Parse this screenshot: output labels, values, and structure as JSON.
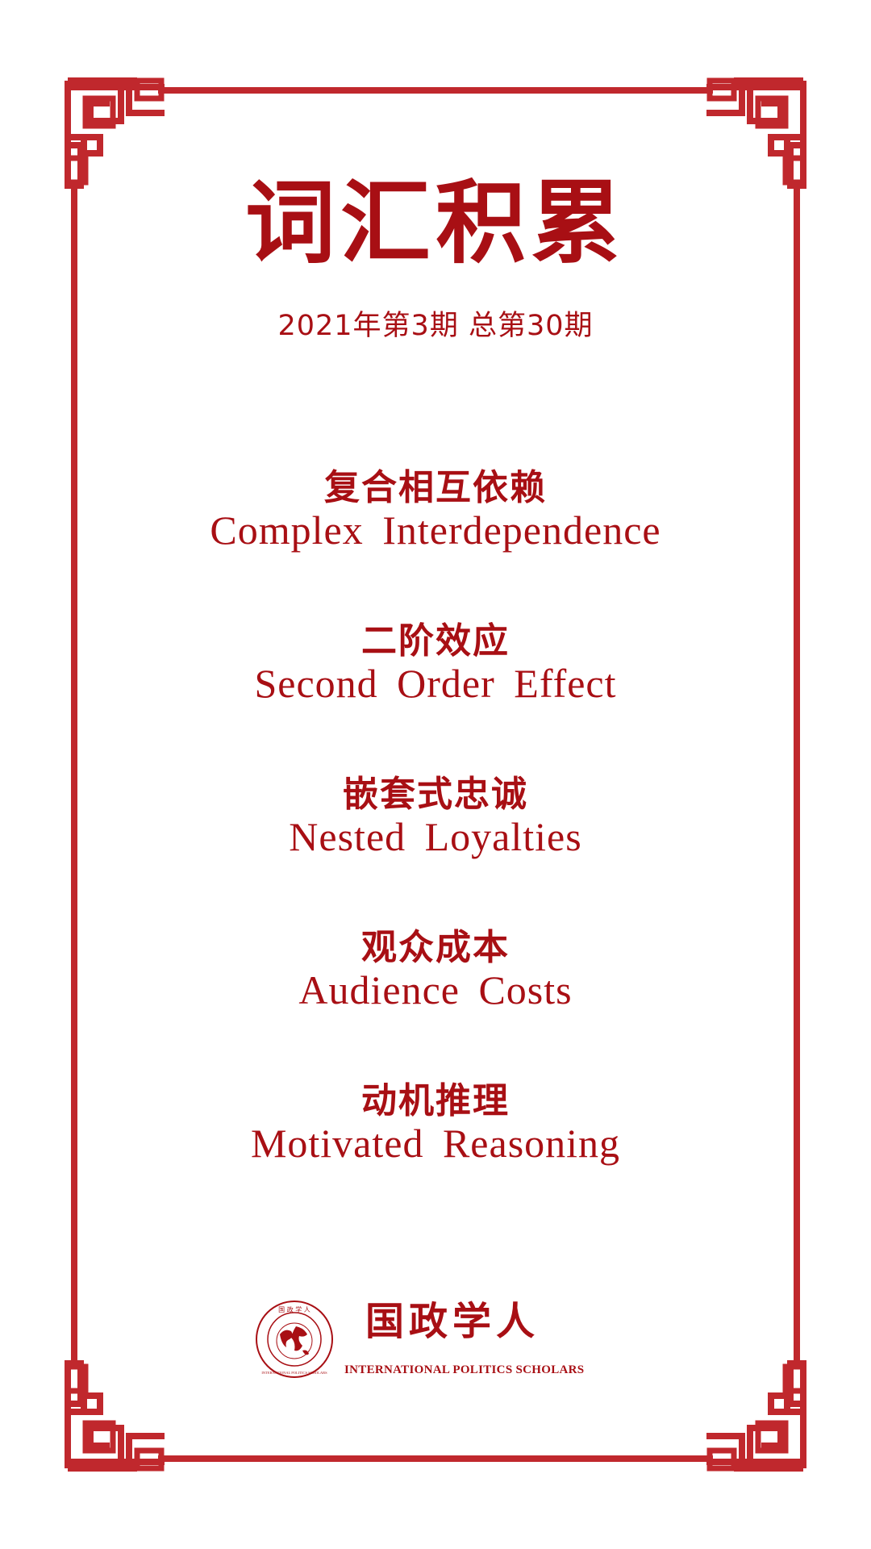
{
  "colors": {
    "accent": "#a80f14",
    "frame": "#c0282d",
    "background": "#ffffff"
  },
  "header": {
    "title": "词汇积累",
    "issue": "2021年第3期 总第30期"
  },
  "terms": [
    {
      "zh": "复合相互依赖",
      "en": "Complex Interdependence"
    },
    {
      "zh": "二阶效应",
      "en": "Second Order Effect"
    },
    {
      "zh": "嵌套式忠诚",
      "en": "Nested Loyalties"
    },
    {
      "zh": "观众成本",
      "en": "Audience Costs"
    },
    {
      "zh": "动机推理",
      "en": "Motivated Reasoning"
    }
  ],
  "logo": {
    "name": "国政学人",
    "subtitle": "INTERNATIONAL POLITICS SCHOLARS",
    "seal_text": "国 政 学 人",
    "seal_ring_text": "INTERNATIONAL POLITICS SCHOLARS",
    "icon": "globe-seal-icon"
  }
}
